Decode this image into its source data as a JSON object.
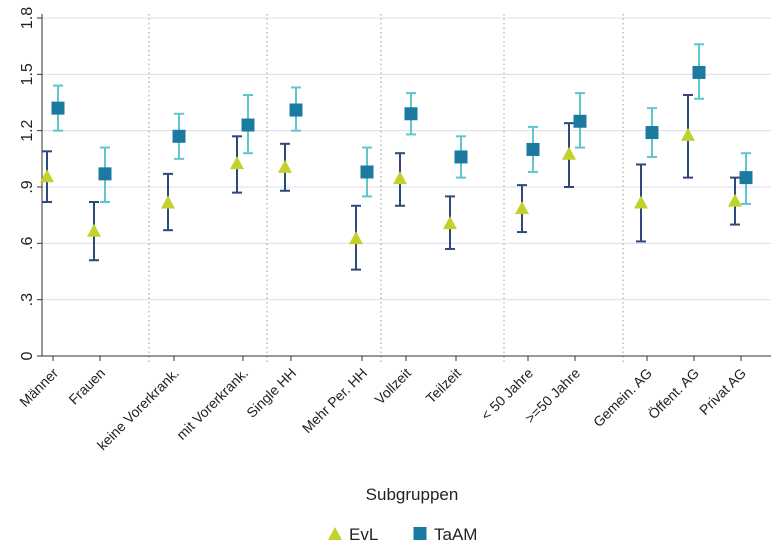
{
  "chart_data": {
    "type": "scatter",
    "xlabel": "Subgruppen",
    "ylabel": "",
    "ylim": [
      0,
      1.8
    ],
    "yticks": [
      0,
      0.3,
      0.6,
      0.9,
      1.2,
      1.5,
      1.8
    ],
    "ytick_labels": [
      "0",
      ".3",
      ".6",
      ".9",
      "1.2",
      "1.5",
      "1.8"
    ],
    "grid": true,
    "legend_position": "bottom",
    "groups": [
      [
        "Männer",
        "Frauen"
      ],
      [
        "keine Vorerkrank.",
        "mit Vorerkrank."
      ],
      [
        "Single HH",
        "Mehr Per. HH"
      ],
      [
        "Vollzeit",
        "Teilzeit"
      ],
      [
        "< 50 Jahre",
        ">=50 Jahre"
      ],
      [
        "Gemein. AG",
        "Öffent. AG",
        "Privat AG"
      ]
    ],
    "categories": [
      "Männer",
      "Frauen",
      "keine Vorerkrank.",
      "mit Vorerkrank.",
      "Single HH",
      "Mehr Per. HH",
      "Vollzeit",
      "Teilzeit",
      "< 50 Jahre",
      ">=50 Jahre",
      "Gemein. AG",
      "Öffent. AG",
      "Privat AG"
    ],
    "series": [
      {
        "name": "EvL",
        "marker": "triangle",
        "color": "#c2d12b",
        "ci_color": "#2b4a7a",
        "values": [
          0.96,
          0.67,
          0.82,
          1.03,
          1.01,
          0.63,
          0.95,
          0.71,
          0.79,
          1.08,
          0.82,
          1.18,
          0.83
        ],
        "ci_low": [
          0.82,
          0.51,
          0.67,
          0.87,
          0.88,
          0.46,
          0.8,
          0.57,
          0.66,
          0.9,
          0.61,
          0.95,
          0.7
        ],
        "ci_high": [
          1.09,
          0.82,
          0.97,
          1.17,
          1.13,
          0.8,
          1.08,
          0.85,
          0.91,
          1.24,
          1.02,
          1.39,
          0.95
        ]
      },
      {
        "name": "TaAM",
        "marker": "square",
        "color": "#1c7aa0",
        "ci_color": "#5ec6cc",
        "values": [
          1.32,
          0.97,
          1.17,
          1.23,
          1.31,
          0.98,
          1.29,
          1.06,
          1.1,
          1.25,
          1.19,
          1.51,
          0.95
        ],
        "ci_low": [
          1.2,
          0.82,
          1.05,
          1.08,
          1.2,
          0.85,
          1.18,
          0.95,
          0.98,
          1.11,
          1.06,
          1.37,
          0.81
        ],
        "ci_high": [
          1.44,
          1.11,
          1.29,
          1.39,
          1.43,
          1.11,
          1.4,
          1.17,
          1.22,
          1.4,
          1.32,
          1.66,
          1.08
        ]
      }
    ]
  }
}
